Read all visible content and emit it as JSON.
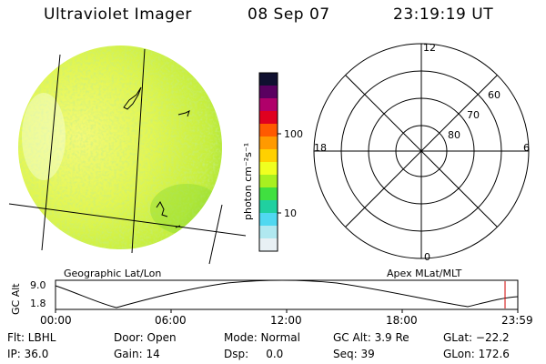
{
  "header": {
    "instrument": "Ultraviolet Imager",
    "date": "08 Sep 07",
    "time": "23:19:19 UT"
  },
  "colorbar": {
    "unit_label": "photon cm⁻²s⁻¹",
    "ticks": [
      "100",
      "10"
    ],
    "colors": [
      "#101030",
      "#5a0060",
      "#b0006a",
      "#e00020",
      "#ff5a00",
      "#ff9a00",
      "#ffd000",
      "#f0ff20",
      "#a8f020",
      "#40e040",
      "#20d0a0",
      "#50d8f0",
      "#b0e8f0",
      "#e8f0f4"
    ]
  },
  "polar_plot": {
    "mlt_labels": {
      "top": "12",
      "left": "18",
      "right": "6",
      "bottom": "0"
    },
    "lat_labels": [
      "60",
      "70",
      "80"
    ]
  },
  "strip": {
    "left_title": "Geographic Lat/Lon",
    "right_title": "Apex MLat/MLT",
    "y_axis_label": "GC Alt",
    "y_ticks": [
      "9.0",
      "1.8"
    ],
    "x_ticks": [
      "00:00",
      "06:00",
      "12:00",
      "18:00",
      "23:59"
    ]
  },
  "info": {
    "filter": "Flt: LBHL",
    "ip": "IP: 36.0",
    "door": "Door: Open",
    "gain": "Gain: 14",
    "mode": "Mode: Normal",
    "dsp": "Dsp:     0.0",
    "gc_alt": "GC Alt: 3.9 Re",
    "seq": "Seq: 39",
    "glat": "GLat: −22.2",
    "glon": "GLon: 172.6"
  }
}
